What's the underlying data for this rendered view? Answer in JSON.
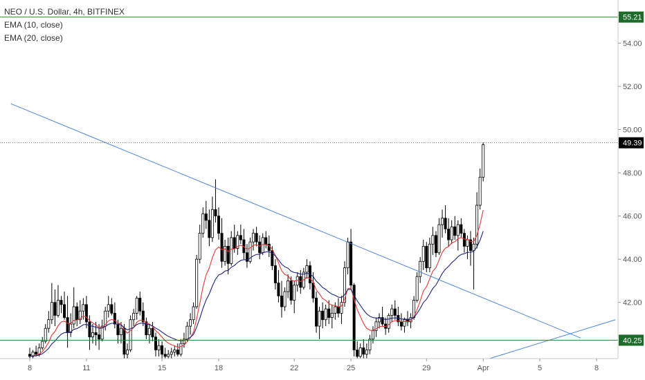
{
  "legend": {
    "symbol": "NEO / U.S. Dollar, 4h, BITFINEX",
    "ema1": "EMA (10, close)",
    "ema2": "EMA (20, close)"
  },
  "colors": {
    "up_fill": "#ffffff",
    "down_fill": "#000000",
    "candle_edge": "#000000",
    "ema10": "#e53935",
    "ema20": "#1a237e",
    "trendline": "#4a86d8",
    "level": "#2e7d32",
    "last_price_tag": "#000000",
    "level_tag": "#1e6b2a"
  },
  "chart_data": {
    "type": "candlestick",
    "title": "NEO / U.S. Dollar, 4h, BITFINEX",
    "ylim": [
      39.4,
      56.0
    ],
    "y_ticks": [
      "42.00",
      "44.00",
      "46.00",
      "48.00",
      "50.00",
      "52.00",
      "54.00"
    ],
    "x_ticks": [
      {
        "label": "8",
        "bar": 0
      },
      {
        "label": "11",
        "bar": 18
      },
      {
        "label": "15",
        "bar": 42
      },
      {
        "label": "18",
        "bar": 60
      },
      {
        "label": "22",
        "bar": 84
      },
      {
        "label": "25",
        "bar": 102
      },
      {
        "label": "29",
        "bar": 126
      },
      {
        "label": "Apr",
        "bar": 144
      },
      {
        "label": "5",
        "bar": 162
      },
      {
        "label": "8",
        "bar": 180
      }
    ],
    "candles_ohlc": [
      [
        39.6,
        39.9,
        39.3,
        39.5
      ],
      [
        39.5,
        39.8,
        39.3,
        39.7
      ],
      [
        39.7,
        40.0,
        39.5,
        39.6
      ],
      [
        39.6,
        40.1,
        39.5,
        39.9
      ],
      [
        39.9,
        40.4,
        39.8,
        40.2
      ],
      [
        40.2,
        41.0,
        40.1,
        40.8
      ],
      [
        40.8,
        41.6,
        40.6,
        41.2
      ],
      [
        41.2,
        42.9,
        41.0,
        42.0
      ],
      [
        42.0,
        42.6,
        40.9,
        41.4
      ],
      [
        41.4,
        42.8,
        41.3,
        42.1
      ],
      [
        42.1,
        42.3,
        41.5,
        41.9
      ],
      [
        41.9,
        42.5,
        41.2,
        41.3
      ],
      [
        41.3,
        42.3,
        39.9,
        40.6
      ],
      [
        40.6,
        41.5,
        40.4,
        41.0
      ],
      [
        41.0,
        42.7,
        40.8,
        41.8
      ],
      [
        41.8,
        42.0,
        40.9,
        41.2
      ],
      [
        41.2,
        42.1,
        41.0,
        41.6
      ],
      [
        41.6,
        42.2,
        41.2,
        41.9
      ],
      [
        41.9,
        42.3,
        40.8,
        41.1
      ],
      [
        41.1,
        41.4,
        39.8,
        40.4
      ],
      [
        40.4,
        41.0,
        40.1,
        40.6
      ],
      [
        40.6,
        41.1,
        40.0,
        40.5
      ],
      [
        40.5,
        41.0,
        39.8,
        40.3
      ],
      [
        40.3,
        41.2,
        40.2,
        40.9
      ],
      [
        40.9,
        41.8,
        40.7,
        41.6
      ],
      [
        41.6,
        42.3,
        41.3,
        41.9
      ],
      [
        41.9,
        42.2,
        41.4,
        41.5
      ],
      [
        41.5,
        42.0,
        40.8,
        41.0
      ],
      [
        41.0,
        41.2,
        40.1,
        40.5
      ],
      [
        40.5,
        41.1,
        40.1,
        40.8
      ],
      [
        40.8,
        41.0,
        39.4,
        39.6
      ],
      [
        39.6,
        40.1,
        39.3,
        39.8
      ],
      [
        39.8,
        41.4,
        39.7,
        41.2
      ],
      [
        41.2,
        41.7,
        40.9,
        41.5
      ],
      [
        41.5,
        42.3,
        41.2,
        42.2
      ],
      [
        42.2,
        42.5,
        41.4,
        41.6
      ],
      [
        41.6,
        42.0,
        40.9,
        41.1
      ],
      [
        41.1,
        41.3,
        40.3,
        40.5
      ],
      [
        40.5,
        41.0,
        40.1,
        40.8
      ],
      [
        40.8,
        41.1,
        40.2,
        40.4
      ],
      [
        40.4,
        40.6,
        39.5,
        39.8
      ],
      [
        39.8,
        40.3,
        39.5,
        40.0
      ],
      [
        40.0,
        40.2,
        39.4,
        39.6
      ],
      [
        39.6,
        39.9,
        39.3,
        39.5
      ],
      [
        39.5,
        39.8,
        39.3,
        39.6
      ],
      [
        39.6,
        39.9,
        39.4,
        39.7
      ],
      [
        39.7,
        40.0,
        39.5,
        39.8
      ],
      [
        39.8,
        40.1,
        39.5,
        39.6
      ],
      [
        39.6,
        40.3,
        39.5,
        40.1
      ],
      [
        40.1,
        40.6,
        39.9,
        40.3
      ],
      [
        40.3,
        41.1,
        40.2,
        40.9
      ],
      [
        40.9,
        41.5,
        40.5,
        41.2
      ],
      [
        41.2,
        42.0,
        41.0,
        41.8
      ],
      [
        41.8,
        44.2,
        41.7,
        44.0
      ],
      [
        44.0,
        45.6,
        43.8,
        45.2
      ],
      [
        45.2,
        46.4,
        45.0,
        46.1
      ],
      [
        46.1,
        46.7,
        45.4,
        45.8
      ],
      [
        45.8,
        46.3,
        44.6,
        45.0
      ],
      [
        45.0,
        46.9,
        44.8,
        46.3
      ],
      [
        46.3,
        47.7,
        45.7,
        46.0
      ],
      [
        46.0,
        46.4,
        44.9,
        45.2
      ],
      [
        45.2,
        45.9,
        43.6,
        43.9
      ],
      [
        43.9,
        44.9,
        43.7,
        44.6
      ],
      [
        44.6,
        45.0,
        43.3,
        43.8
      ],
      [
        43.8,
        45.3,
        43.7,
        45.0
      ],
      [
        45.0,
        45.6,
        44.3,
        44.5
      ],
      [
        44.5,
        45.3,
        44.2,
        45.1
      ],
      [
        45.1,
        45.6,
        44.7,
        44.9
      ],
      [
        44.9,
        45.4,
        44.0,
        44.3
      ],
      [
        44.3,
        44.7,
        43.6,
        43.9
      ],
      [
        43.9,
        45.0,
        43.8,
        44.8
      ],
      [
        44.8,
        45.4,
        44.4,
        45.2
      ],
      [
        45.2,
        45.5,
        44.6,
        44.8
      ],
      [
        44.8,
        45.1,
        44.0,
        44.3
      ],
      [
        44.3,
        45.2,
        44.2,
        45.0
      ],
      [
        45.0,
        45.3,
        44.5,
        44.7
      ],
      [
        44.7,
        45.1,
        44.1,
        44.4
      ],
      [
        44.4,
        44.6,
        43.5,
        43.7
      ],
      [
        43.7,
        44.0,
        42.6,
        42.9
      ],
      [
        42.9,
        43.5,
        42.0,
        42.3
      ],
      [
        42.3,
        43.0,
        41.3,
        41.8
      ],
      [
        41.8,
        42.7,
        41.6,
        42.5
      ],
      [
        42.5,
        43.3,
        42.2,
        43.0
      ],
      [
        43.0,
        43.2,
        41.9,
        42.1
      ],
      [
        42.1,
        43.0,
        41.5,
        42.8
      ],
      [
        42.8,
        43.4,
        42.5,
        43.2
      ],
      [
        43.2,
        43.5,
        42.4,
        42.7
      ],
      [
        42.7,
        43.6,
        42.6,
        43.4
      ],
      [
        43.4,
        44.0,
        43.1,
        43.7
      ],
      [
        43.7,
        43.9,
        42.6,
        42.9
      ],
      [
        42.9,
        43.4,
        42.0,
        42.2
      ],
      [
        42.2,
        42.5,
        40.6,
        40.9
      ],
      [
        40.9,
        41.8,
        40.3,
        41.6
      ],
      [
        41.6,
        42.0,
        40.8,
        41.2
      ],
      [
        41.2,
        41.9,
        40.9,
        41.7
      ],
      [
        41.7,
        42.1,
        41.0,
        41.3
      ],
      [
        41.3,
        41.9,
        40.8,
        41.5
      ],
      [
        41.5,
        42.0,
        41.2,
        41.8
      ],
      [
        41.8,
        42.2,
        41.3,
        41.5
      ],
      [
        41.5,
        42.3,
        41.0,
        42.0
      ],
      [
        42.0,
        43.9,
        41.8,
        43.6
      ],
      [
        43.6,
        45.0,
        43.3,
        44.8
      ],
      [
        44.8,
        45.4,
        42.6,
        42.8
      ],
      [
        42.8,
        42.9,
        39.5,
        39.8
      ],
      [
        39.8,
        40.2,
        39.3,
        39.5
      ],
      [
        39.5,
        40.1,
        39.3,
        39.9
      ],
      [
        39.9,
        40.3,
        39.4,
        39.6
      ],
      [
        39.6,
        40.1,
        39.4,
        39.8
      ],
      [
        39.8,
        40.5,
        39.6,
        40.3
      ],
      [
        40.3,
        40.9,
        40.1,
        40.7
      ],
      [
        40.7,
        41.3,
        40.4,
        41.1
      ],
      [
        41.1,
        41.5,
        40.8,
        41.3
      ],
      [
        41.3,
        41.8,
        40.9,
        41.0
      ],
      [
        41.0,
        41.3,
        40.5,
        40.8
      ],
      [
        40.8,
        41.5,
        40.6,
        41.4
      ],
      [
        41.4,
        41.9,
        41.1,
        41.7
      ],
      [
        41.7,
        42.1,
        41.2,
        41.4
      ],
      [
        41.4,
        41.8,
        40.9,
        41.1
      ],
      [
        41.1,
        41.5,
        40.7,
        40.9
      ],
      [
        40.9,
        41.3,
        40.6,
        41.2
      ],
      [
        41.2,
        41.6,
        40.9,
        41.1
      ],
      [
        41.1,
        41.5,
        40.8,
        41.3
      ],
      [
        41.3,
        42.3,
        41.2,
        42.1
      ],
      [
        42.1,
        43.4,
        42.0,
        43.2
      ],
      [
        43.2,
        44.1,
        42.9,
        43.9
      ],
      [
        43.9,
        44.9,
        43.5,
        44.6
      ],
      [
        44.6,
        44.8,
        43.4,
        43.6
      ],
      [
        43.6,
        45.0,
        43.4,
        44.7
      ],
      [
        44.7,
        45.5,
        44.2,
        45.1
      ],
      [
        45.1,
        45.3,
        44.1,
        44.3
      ],
      [
        44.3,
        45.9,
        44.2,
        45.6
      ],
      [
        45.6,
        46.3,
        45.0,
        45.9
      ],
      [
        45.9,
        46.5,
        45.2,
        45.4
      ],
      [
        45.4,
        45.9,
        44.6,
        44.9
      ],
      [
        44.9,
        45.8,
        44.7,
        45.5
      ],
      [
        45.5,
        46.0,
        44.9,
        45.1
      ],
      [
        45.1,
        45.8,
        44.4,
        45.6
      ],
      [
        45.6,
        45.9,
        45.0,
        45.2
      ],
      [
        45.2,
        45.4,
        44.3,
        44.6
      ],
      [
        44.6,
        45.1,
        44.0,
        44.9
      ],
      [
        44.9,
        45.3,
        43.7,
        44.4
      ],
      [
        44.4,
        45.0,
        42.6,
        44.7
      ],
      [
        44.7,
        47.1,
        44.5,
        46.5
      ],
      [
        46.5,
        48.2,
        46.3,
        47.8
      ],
      [
        47.8,
        49.4,
        47.6,
        49.3
      ]
    ],
    "ema": [
      {
        "name": "EMA (10, close)",
        "period": 10,
        "color": "#e53935"
      },
      {
        "name": "EMA (20, close)",
        "period": 20,
        "color": "#1a237e"
      }
    ],
    "trendlines": [
      {
        "bar1": -6,
        "p1": 51.2,
        "bar2": 175,
        "p2": 40.35,
        "color": "#4a86d8"
      },
      {
        "bar1": 146,
        "p1": 39.4,
        "bar2": 186,
        "p2": 41.2,
        "color": "#4a86d8"
      }
    ],
    "horizontal_levels": [
      {
        "price": 55.21,
        "label": "55.21"
      },
      {
        "price": 40.25,
        "label": "40.25"
      }
    ],
    "last_price": {
      "price": 49.39,
      "label": "49.39"
    }
  }
}
